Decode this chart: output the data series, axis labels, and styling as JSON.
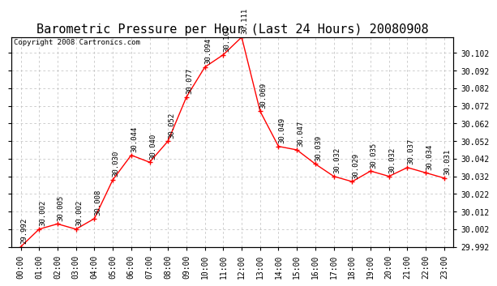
{
  "title": "Barometric Pressure per Hour (Last 24 Hours) 20080908",
  "copyright": "Copyright 2008 Cartronics.com",
  "hours": [
    "00:00",
    "01:00",
    "02:00",
    "03:00",
    "04:00",
    "05:00",
    "06:00",
    "07:00",
    "08:00",
    "09:00",
    "10:00",
    "11:00",
    "12:00",
    "13:00",
    "14:00",
    "15:00",
    "16:00",
    "17:00",
    "18:00",
    "19:00",
    "20:00",
    "21:00",
    "22:00",
    "23:00"
  ],
  "values": [
    29.992,
    30.002,
    30.005,
    30.002,
    30.008,
    30.03,
    30.044,
    30.04,
    30.052,
    30.077,
    30.094,
    30.101,
    30.111,
    30.069,
    30.049,
    30.047,
    30.039,
    30.032,
    30.029,
    30.035,
    30.032,
    30.037,
    30.034,
    30.031
  ],
  "line_color": "#ff0000",
  "marker_color": "#ff0000",
  "bg_color": "#ffffff",
  "grid_color": "#bbbbbb",
  "ylim_min": 29.992,
  "ylim_max": 30.111,
  "ytick_interval": 0.01,
  "title_fontsize": 11,
  "label_fontsize": 6.5,
  "tick_fontsize": 7,
  "copyright_fontsize": 6.5
}
